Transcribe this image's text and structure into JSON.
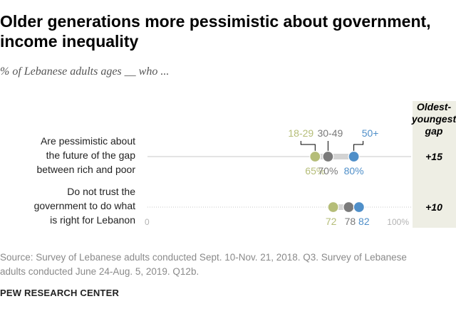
{
  "title": "Older generations more pessimistic about government, income inequality",
  "subtitle": "% of Lebanese adults ages __ who ...",
  "source": "Source: Survey of Lebanese adults conducted Sept. 10-Nov. 21, 2018. Q3. Survey of Lebanese adults conducted June 24-Aug. 5, 2019. Q12b.",
  "brand": "PEW RESEARCH CENTER",
  "colors": {
    "age_18_29": "#b5bd78",
    "age_30_49": "#7a7a7a",
    "age_50_plus": "#4f8fc9",
    "gap_column": "#eeeee4"
  },
  "chart_data": {
    "type": "dot",
    "xlim": [
      0,
      100
    ],
    "axis_min_label": "0",
    "axis_max_label": "100%",
    "gap_header": [
      "Oldest-",
      "youngest",
      "gap"
    ],
    "series": [
      {
        "name": "18-29",
        "color": "#b5bd78"
      },
      {
        "name": "30-49",
        "color": "#7a7a7a"
      },
      {
        "name": "50+",
        "color": "#4f8fc9"
      }
    ],
    "rows": [
      {
        "label": [
          "Are pessimistic about",
          "the future of the gap",
          "between rich and poor"
        ],
        "values": [
          65,
          70,
          80
        ],
        "value_labels": [
          "65%",
          "70%",
          "80%"
        ],
        "gap": "+15"
      },
      {
        "label": [
          "Do not trust the",
          "government to do what",
          "is right for Lebanon"
        ],
        "values": [
          72,
          78,
          82
        ],
        "value_labels": [
          "72",
          "78",
          "82"
        ],
        "gap": "+10"
      }
    ]
  }
}
